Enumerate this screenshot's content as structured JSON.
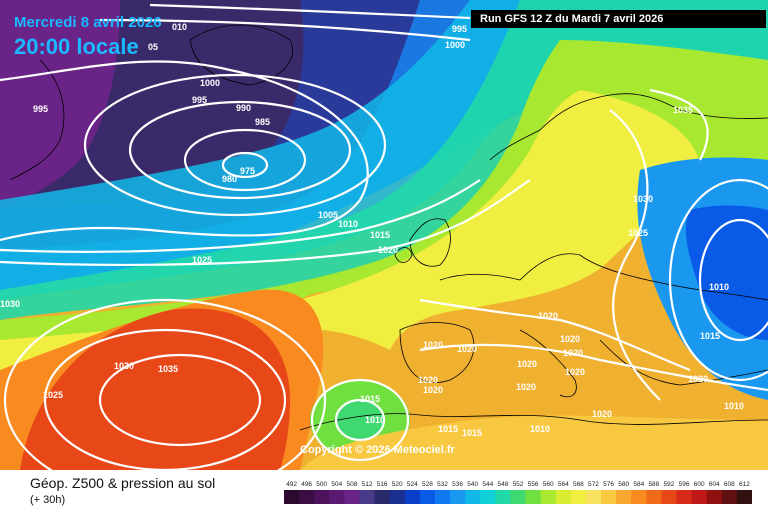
{
  "header": {
    "date": "Mercredi 8 avril 2026",
    "time": "20:00 locale",
    "run": "Run GFS 12 Z du Mardi 7 avril 2026"
  },
  "copyright": "Copyright © 2026 Meteociel.fr",
  "footer": {
    "title": "Géop. Z500 & pression au sol",
    "subtitle": "(+ 30h)"
  },
  "legend": {
    "values": [
      "492",
      "496",
      "500",
      "504",
      "508",
      "512",
      "516",
      "520",
      "524",
      "528",
      "532",
      "536",
      "540",
      "544",
      "548",
      "552",
      "556",
      "560",
      "564",
      "568",
      "572",
      "576",
      "580",
      "584",
      "588",
      "592",
      "596",
      "600",
      "604",
      "608",
      "612"
    ],
    "colors": [
      "#2b0a2e",
      "#3b0d45",
      "#4d125c",
      "#5a1a73",
      "#6a2488",
      "#4a3a8a",
      "#2a2a6a",
      "#1a2f8f",
      "#0a3dc8",
      "#0a5ae8",
      "#1078f0",
      "#1a98f0",
      "#12b8e8",
      "#10d0d8",
      "#20d8a8",
      "#40d870",
      "#70e040",
      "#a8e830",
      "#d8ec30",
      "#f0ee40",
      "#f8e060",
      "#f8c840",
      "#f8a830",
      "#f88a20",
      "#f06a18",
      "#e84818",
      "#d82a18",
      "#c01818",
      "#901010",
      "#601010",
      "#301010"
    ]
  },
  "isobars": [
    "995",
    "1000",
    "1000",
    "995",
    "990",
    "985",
    "975",
    "980",
    "995",
    "1005",
    "1010",
    "1015",
    "1020",
    "1025",
    "1030",
    "1035",
    "1025",
    "1030",
    "1035",
    "1030",
    "1025",
    "1020",
    "1020",
    "1020",
    "1020",
    "1020",
    "1020",
    "1020",
    "1020",
    "1020",
    "1020",
    "1015",
    "1010",
    "1015",
    "1015",
    "1010",
    "1020",
    "1010",
    "1015",
    "1020",
    "1010",
    "010",
    "05"
  ]
}
